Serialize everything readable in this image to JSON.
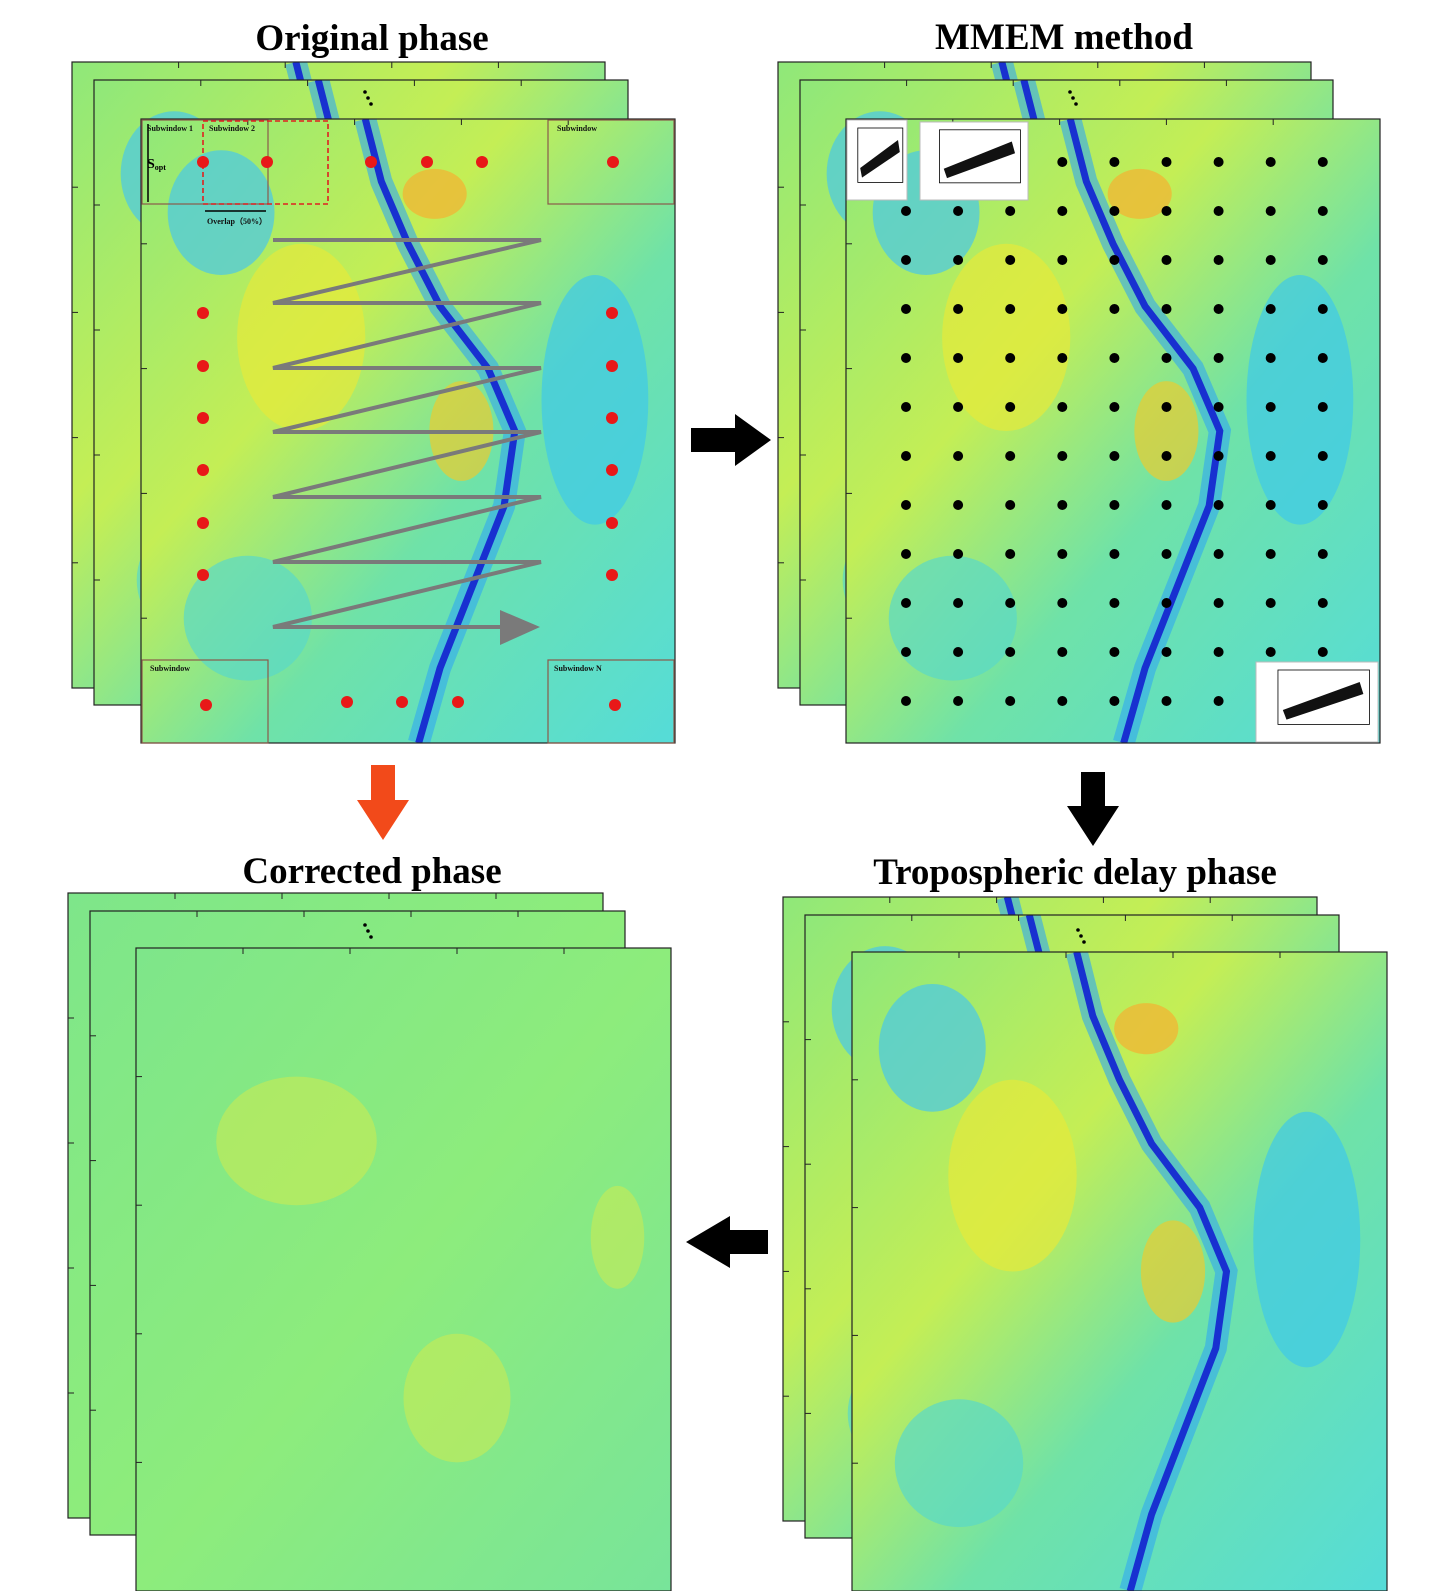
{
  "titles": {
    "original": "Original phase",
    "mmem": "MMEM method",
    "corrected": "Corrected phase",
    "tropospheric": "Tropospheric delay phase"
  },
  "subwindows": {
    "first": "Subwindow 1",
    "second": "Subwindow 2",
    "top_right": "Subwindow",
    "bottom_left": "Subwindow",
    "last": "Subwindow N",
    "overlap": "Overlap（50%）",
    "size": "S",
    "size_sub": "opt"
  }
}
